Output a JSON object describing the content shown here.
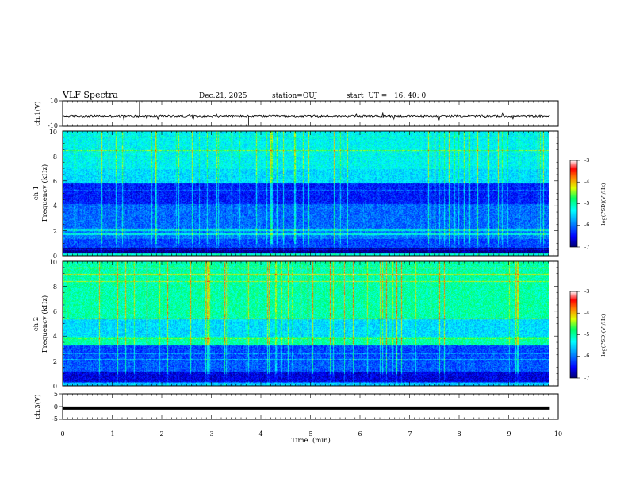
{
  "header": {
    "title": "VLF Spectra",
    "date": "Dec.21, 2025",
    "station": "station=OUJ",
    "start": "start  UT =   16: 40: 0"
  },
  "chart_data": [
    {
      "type": "line",
      "name": "ch1_waveform",
      "ylabel": "ch.1(V)",
      "ylim": [
        -10,
        10
      ],
      "yticks": [
        "10",
        "-10"
      ],
      "xlim": [
        0,
        10
      ],
      "baseline_y": -2.0
    },
    {
      "type": "heatmap",
      "name": "ch1_spectrogram",
      "ylabel_line1": "ch.1",
      "ylabel_line2": "Frequency (kHz)",
      "ylim": [
        0,
        10
      ],
      "yticks": [
        "0",
        "2",
        "4",
        "6",
        "8",
        "10"
      ],
      "xlim": [
        0,
        10
      ],
      "data_xlim": [
        0,
        9.83
      ],
      "colorbar": {
        "label": "log(PSD)(V²/Hz)",
        "ticks": [
          "-3",
          "-4",
          "-5",
          "-6",
          "-7"
        ],
        "range": [
          -7,
          -3
        ]
      }
    },
    {
      "type": "heatmap",
      "name": "ch2_spectrogram",
      "ylabel_line1": "ch.2",
      "ylabel_line2": "Frequency (kHz)",
      "ylim": [
        0,
        10
      ],
      "yticks": [
        "0",
        "2",
        "4",
        "6",
        "8",
        "10"
      ],
      "xlim": [
        0,
        10
      ],
      "data_xlim": [
        0,
        9.83
      ],
      "colorbar": {
        "label": "log(PSD)(V²/Hz)",
        "ticks": [
          "-3",
          "-4",
          "-5",
          "-6",
          "-7"
        ],
        "range": [
          -7,
          -3
        ]
      }
    },
    {
      "type": "line",
      "name": "ch3_waveform",
      "ylabel": "ch.3(V)",
      "ylim": [
        -5,
        5
      ],
      "yticks": [
        "5",
        "0",
        "-5"
      ],
      "xlim": [
        0,
        10
      ],
      "baseline_y": -0.6,
      "xlabel": "Time  (min)",
      "xticks": [
        "0",
        "1",
        "2",
        "3",
        "4",
        "5",
        "6",
        "7",
        "8",
        "9",
        "10"
      ]
    }
  ]
}
